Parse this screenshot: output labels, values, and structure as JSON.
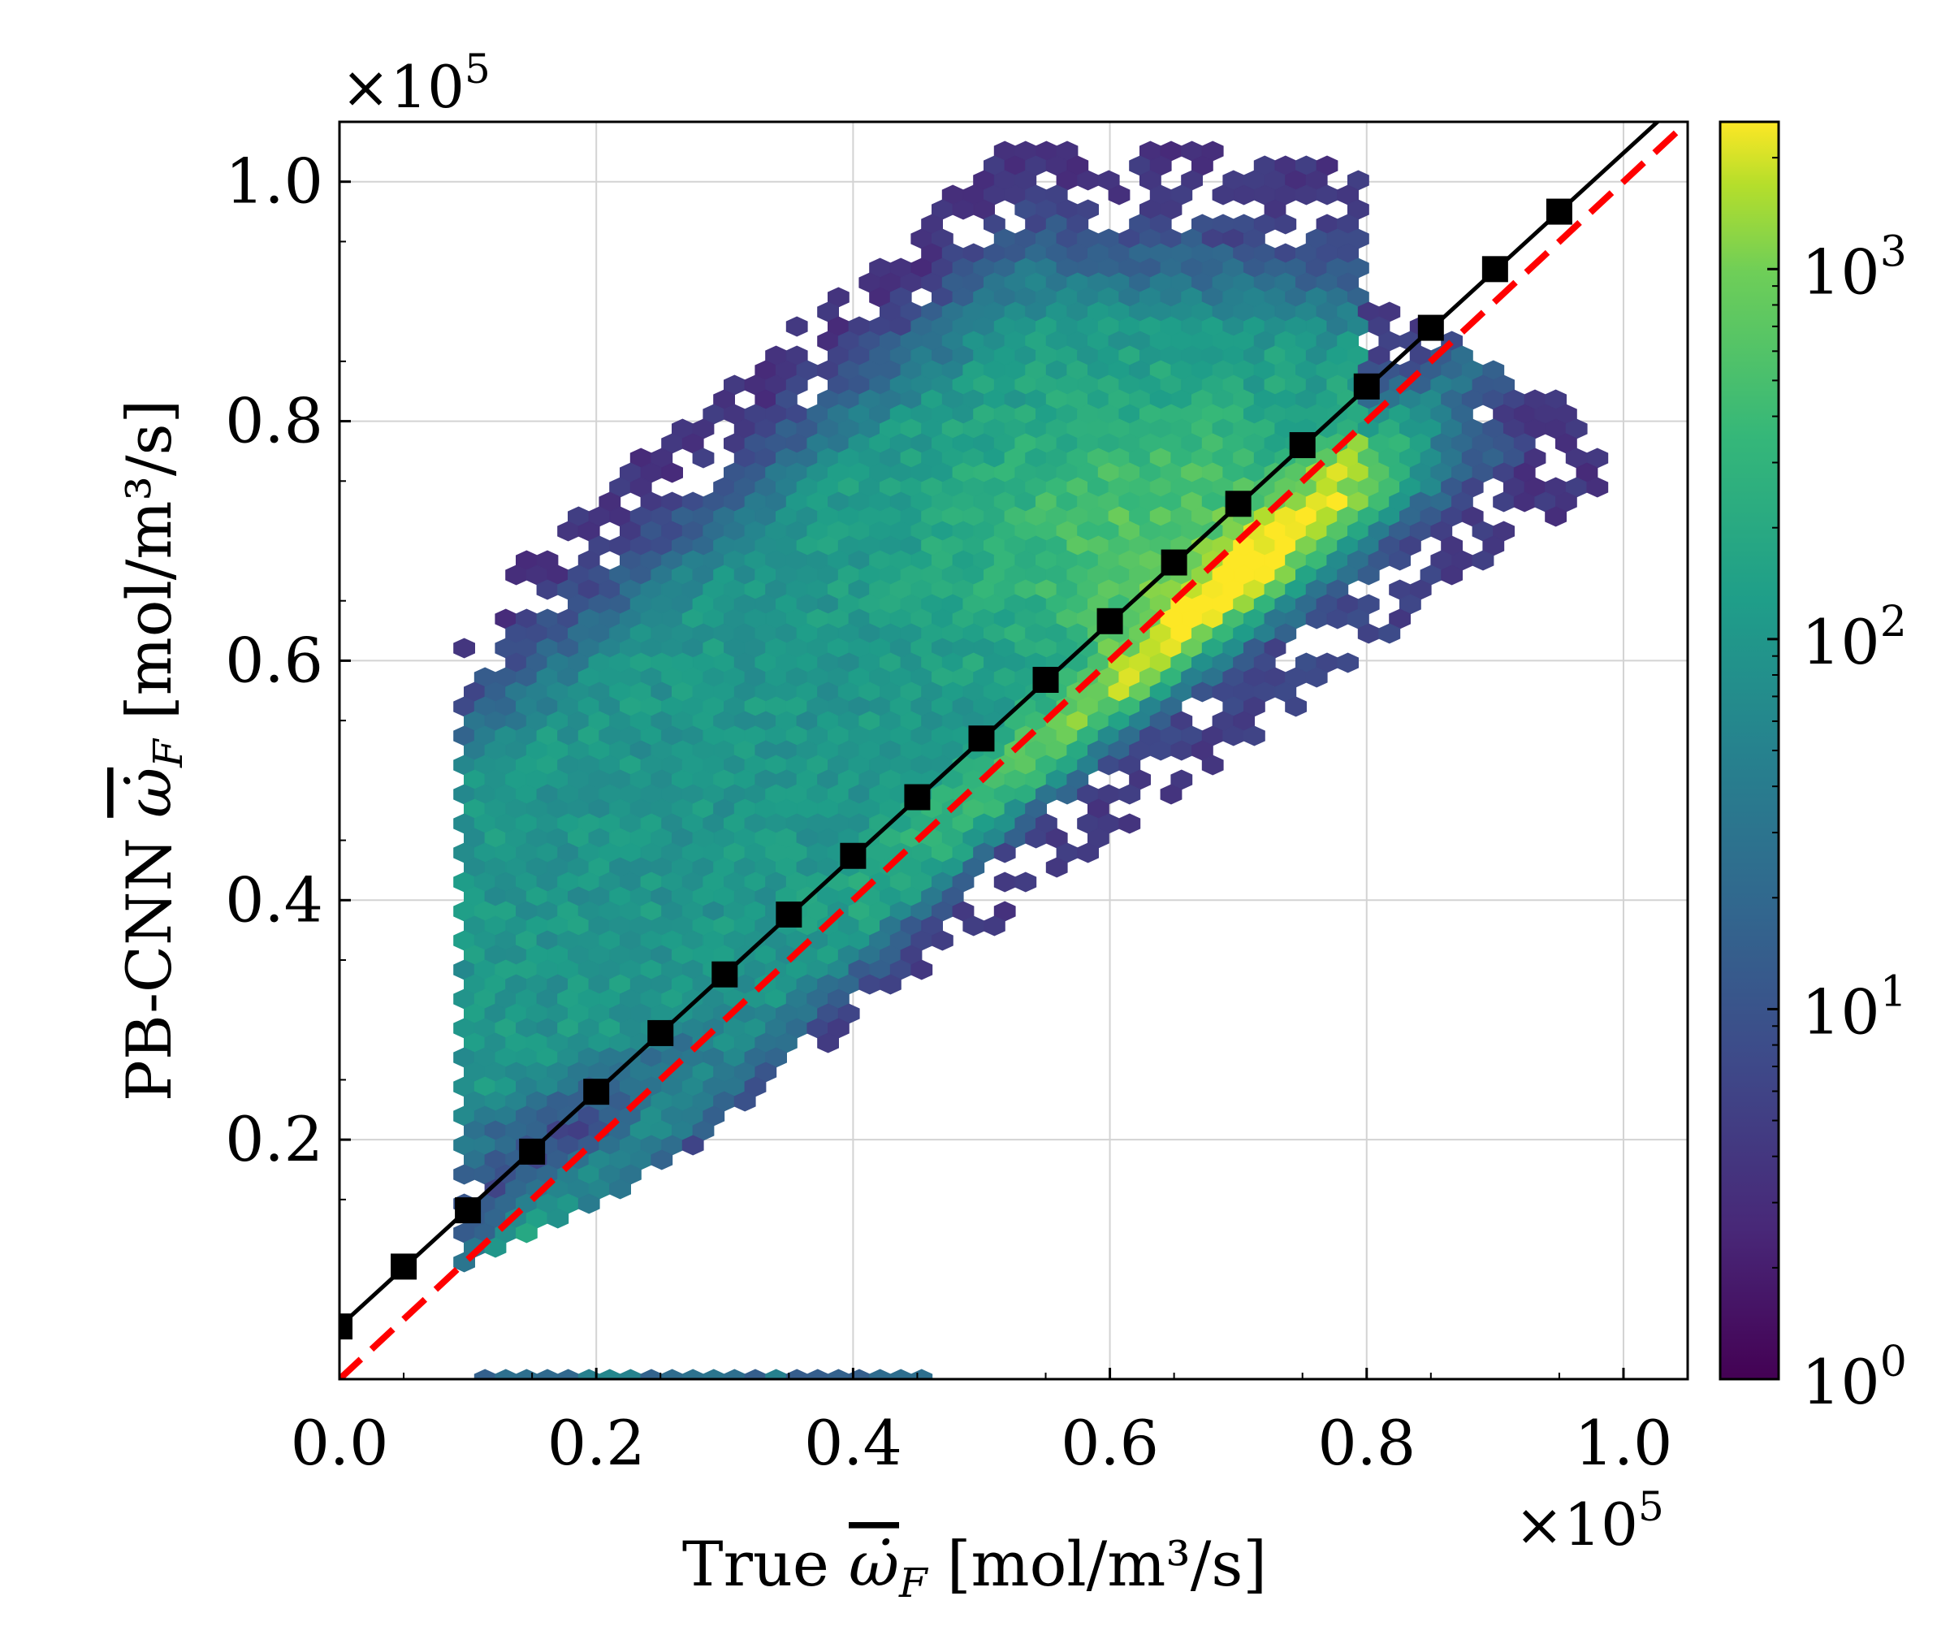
{
  "chart_data": {
    "type": "hexbin",
    "title": "",
    "xlabel": {
      "prefix": "True ",
      "symbol": "ω̇",
      "subscript": "F",
      "units": " [mol/m³/s]"
    },
    "ylabel": {
      "prefix": "PB-CNN ",
      "symbol": "ω̇",
      "subscript": "F",
      "units": " [mol/m³/s]"
    },
    "xlim": [
      0.0,
      1.05
    ],
    "ylim": [
      0.0,
      1.05
    ],
    "x_scale_label": {
      "base": "×10",
      "exp": "5"
    },
    "y_scale_label": {
      "base": "×10",
      "exp": "5"
    },
    "xticks": [
      0.0,
      0.2,
      0.4,
      0.6,
      0.8,
      1.0
    ],
    "xtick_labels": [
      "0.0",
      "0.2",
      "0.4",
      "0.6",
      "0.8",
      "1.0"
    ],
    "yticks": [
      0.2,
      0.4,
      0.6,
      0.8,
      1.0
    ],
    "ytick_labels": [
      "0.2",
      "0.4",
      "0.6",
      "0.8",
      "1.0"
    ],
    "grid": true,
    "colorbar": {
      "scale": "log",
      "range": [
        1,
        2500
      ],
      "colormap": "viridis",
      "ticks": [
        {
          "base": "10",
          "exp": "0"
        },
        {
          "base": "10",
          "exp": "1"
        },
        {
          "base": "10",
          "exp": "2"
        },
        {
          "base": "10",
          "exp": "3"
        }
      ]
    },
    "series": [
      {
        "name": "conditional mean",
        "style": "black solid line with square markers",
        "color": "#000000",
        "x": [
          0.0,
          0.05,
          0.1,
          0.15,
          0.2,
          0.25,
          0.3,
          0.35,
          0.4,
          0.45,
          0.5,
          0.55,
          0.6,
          0.65,
          0.7,
          0.75,
          0.8,
          0.85,
          0.9,
          0.95
        ],
        "y": [
          0.044,
          0.094,
          0.141,
          0.19,
          0.24,
          0.289,
          0.338,
          0.388,
          0.437,
          0.486,
          0.535,
          0.584,
          0.633,
          0.682,
          0.731,
          0.78,
          0.829,
          0.878,
          0.927,
          0.975
        ]
      },
      {
        "name": "ideal y = x",
        "style": "red dashed line",
        "color": "#ff0000",
        "x": [
          0.0,
          1.05
        ],
        "y": [
          0.0,
          1.05
        ]
      }
    ],
    "density_features": [
      {
        "feature": "main ridge near diagonal",
        "x_range": [
          0.1,
          0.85
        ],
        "peak_count_approx": 2500
      },
      {
        "feature": "dense cluster",
        "x_center": 0.63,
        "y_center": 0.7
      },
      {
        "feature": "bottom row of bins at y≈0",
        "x_range": [
          0.1,
          0.45
        ]
      }
    ]
  }
}
